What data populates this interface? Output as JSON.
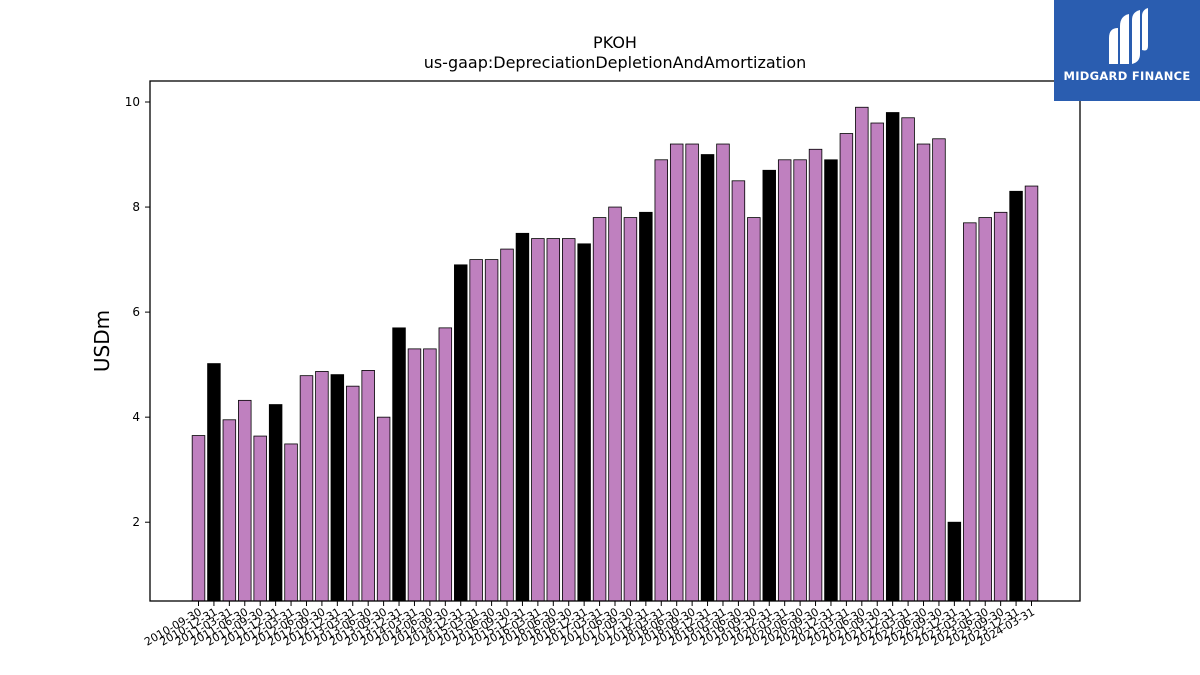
{
  "brand": {
    "name": "MIDGARD FINANCE",
    "logo_icon": "midgard-m-logo-icon",
    "background": "#2a5db0"
  },
  "chart_data": {
    "type": "bar",
    "title": "PKOH",
    "subtitle": "us-gaap:DepreciationDepletionAndAmortization",
    "xlabel": "",
    "ylabel": "USDm",
    "ylim": [
      0.5,
      10.4
    ],
    "yticks": [
      2,
      4,
      6,
      8,
      10
    ],
    "grid": false,
    "colors": {
      "q": "#bf80bf",
      "fy": "#000000",
      "edge": "#000000"
    },
    "categories": [
      "2010-09-30",
      "2010-12-31",
      "2011-03-31",
      "2011-06-30",
      "2011-09-30",
      "2011-12-31",
      "2012-03-31",
      "2012-06-30",
      "2012-09-30",
      "2012-12-31",
      "2013-03-31",
      "2013-06-30",
      "2013-09-30",
      "2013-12-31",
      "2014-03-31",
      "2014-06-30",
      "2014-09-30",
      "2014-12-31",
      "2015-03-31",
      "2015-06-30",
      "2015-09-30",
      "2015-12-31",
      "2016-03-31",
      "2016-06-30",
      "2016-09-30",
      "2016-12-31",
      "2017-03-31",
      "2017-06-30",
      "2017-09-30",
      "2017-12-31",
      "2018-03-31",
      "2018-06-30",
      "2018-09-30",
      "2018-12-31",
      "2019-03-31",
      "2019-06-30",
      "2019-09-30",
      "2019-12-31",
      "2020-03-31",
      "2020-06-30",
      "2020-09-30",
      "2020-12-31",
      "2021-03-31",
      "2021-06-30",
      "2021-09-30",
      "2021-12-31",
      "2022-03-31",
      "2022-06-30",
      "2022-09-30",
      "2022-12-31",
      "2023-03-31",
      "2023-06-30",
      "2023-09-30",
      "2023-12-31",
      "2024-03-31"
    ],
    "values": [
      3.65,
      5.02,
      3.95,
      4.32,
      3.64,
      4.24,
      3.49,
      4.79,
      4.87,
      4.81,
      4.59,
      4.89,
      4.0,
      5.7,
      5.3,
      5.3,
      5.7,
      6.9,
      7.0,
      7.0,
      7.2,
      7.5,
      7.4,
      7.4,
      7.4,
      7.3,
      7.8,
      8.0,
      7.8,
      7.9,
      8.9,
      9.2,
      9.2,
      9.0,
      9.2,
      8.5,
      7.8,
      8.7,
      8.9,
      8.9,
      9.1,
      8.9,
      9.4,
      9.9,
      9.6,
      9.8,
      9.7,
      9.2,
      9.3,
      2.0,
      7.7,
      7.8,
      7.9,
      8.3,
      8.4
    ],
    "annual": [
      false,
      true,
      false,
      false,
      false,
      true,
      false,
      false,
      false,
      true,
      false,
      false,
      false,
      true,
      false,
      false,
      false,
      true,
      false,
      false,
      false,
      true,
      false,
      false,
      false,
      true,
      false,
      false,
      false,
      true,
      false,
      false,
      false,
      true,
      false,
      false,
      false,
      true,
      false,
      false,
      false,
      true,
      false,
      false,
      false,
      true,
      false,
      false,
      false,
      true,
      false,
      false,
      false,
      true,
      false
    ]
  }
}
